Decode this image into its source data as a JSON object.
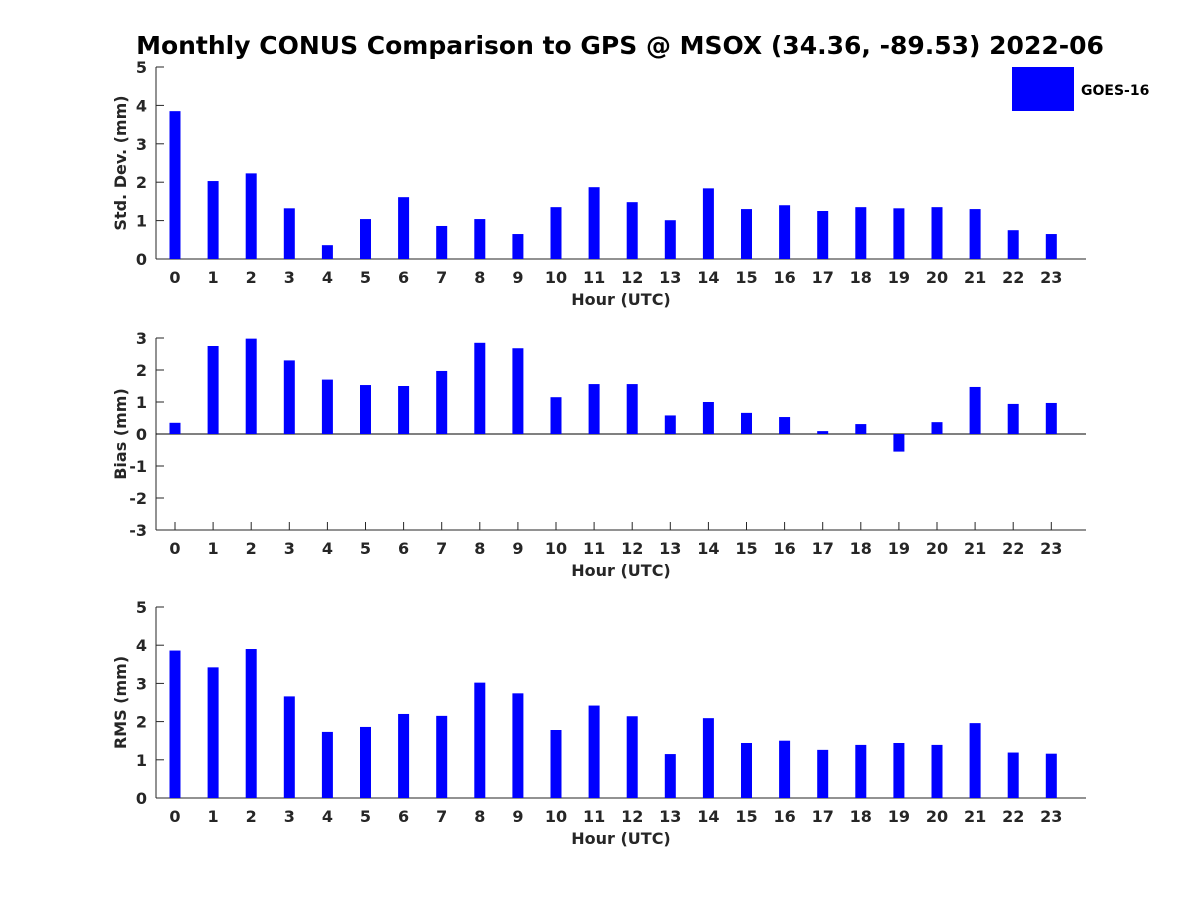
{
  "title": "Monthly CONUS Comparison to GPS @ MSOX (34.36, -89.53) 2022-06",
  "legend": {
    "label": "GOES-16",
    "color": "#0000ff"
  },
  "colors": {
    "bar": "#0000ff",
    "axis": "#262626"
  },
  "chart_data": [
    {
      "type": "bar",
      "xlabel": "Hour (UTC)",
      "ylabel": "Std. Dev. (mm)",
      "ylim": [
        0,
        5
      ],
      "yticks": [
        0,
        1,
        2,
        3,
        4,
        5
      ],
      "categories": [
        "0",
        "1",
        "2",
        "3",
        "4",
        "5",
        "6",
        "7",
        "8",
        "9",
        "10",
        "11",
        "12",
        "13",
        "14",
        "15",
        "16",
        "17",
        "18",
        "19",
        "20",
        "21",
        "22",
        "23"
      ],
      "series": [
        {
          "name": "GOES-16",
          "values": [
            3.85,
            2.03,
            2.23,
            1.32,
            0.36,
            1.04,
            1.61,
            0.86,
            1.04,
            0.65,
            1.35,
            1.87,
            1.48,
            1.01,
            1.84,
            1.3,
            1.4,
            1.25,
            1.35,
            1.32,
            1.35,
            1.3,
            0.75,
            0.65
          ]
        }
      ]
    },
    {
      "type": "bar",
      "xlabel": "Hour (UTC)",
      "ylabel": "Bias (mm)",
      "ylim": [
        -3,
        3
      ],
      "yticks": [
        -3,
        -2,
        -1,
        0,
        1,
        2,
        3
      ],
      "categories": [
        "0",
        "1",
        "2",
        "3",
        "4",
        "5",
        "6",
        "7",
        "8",
        "9",
        "10",
        "11",
        "12",
        "13",
        "14",
        "15",
        "16",
        "17",
        "18",
        "19",
        "20",
        "21",
        "22",
        "23"
      ],
      "series": [
        {
          "name": "GOES-16",
          "values": [
            0.35,
            2.75,
            2.98,
            2.3,
            1.7,
            1.53,
            1.5,
            1.97,
            2.85,
            2.68,
            1.15,
            1.56,
            1.56,
            0.58,
            1.0,
            0.66,
            0.53,
            0.09,
            0.31,
            -0.55,
            0.37,
            1.47,
            0.94,
            0.97
          ]
        }
      ]
    },
    {
      "type": "bar",
      "xlabel": "Hour (UTC)",
      "ylabel": "RMS (mm)",
      "ylim": [
        0,
        5
      ],
      "yticks": [
        0,
        1,
        2,
        3,
        4,
        5
      ],
      "categories": [
        "0",
        "1",
        "2",
        "3",
        "4",
        "5",
        "6",
        "7",
        "8",
        "9",
        "10",
        "11",
        "12",
        "13",
        "14",
        "15",
        "16",
        "17",
        "18",
        "19",
        "20",
        "21",
        "22",
        "23"
      ],
      "series": [
        {
          "name": "GOES-16",
          "values": [
            3.86,
            3.42,
            3.9,
            2.66,
            1.73,
            1.86,
            2.2,
            2.15,
            3.02,
            2.74,
            1.78,
            2.42,
            2.14,
            1.15,
            2.09,
            1.44,
            1.5,
            1.26,
            1.39,
            1.44,
            1.39,
            1.96,
            1.19,
            1.16
          ]
        }
      ]
    }
  ]
}
